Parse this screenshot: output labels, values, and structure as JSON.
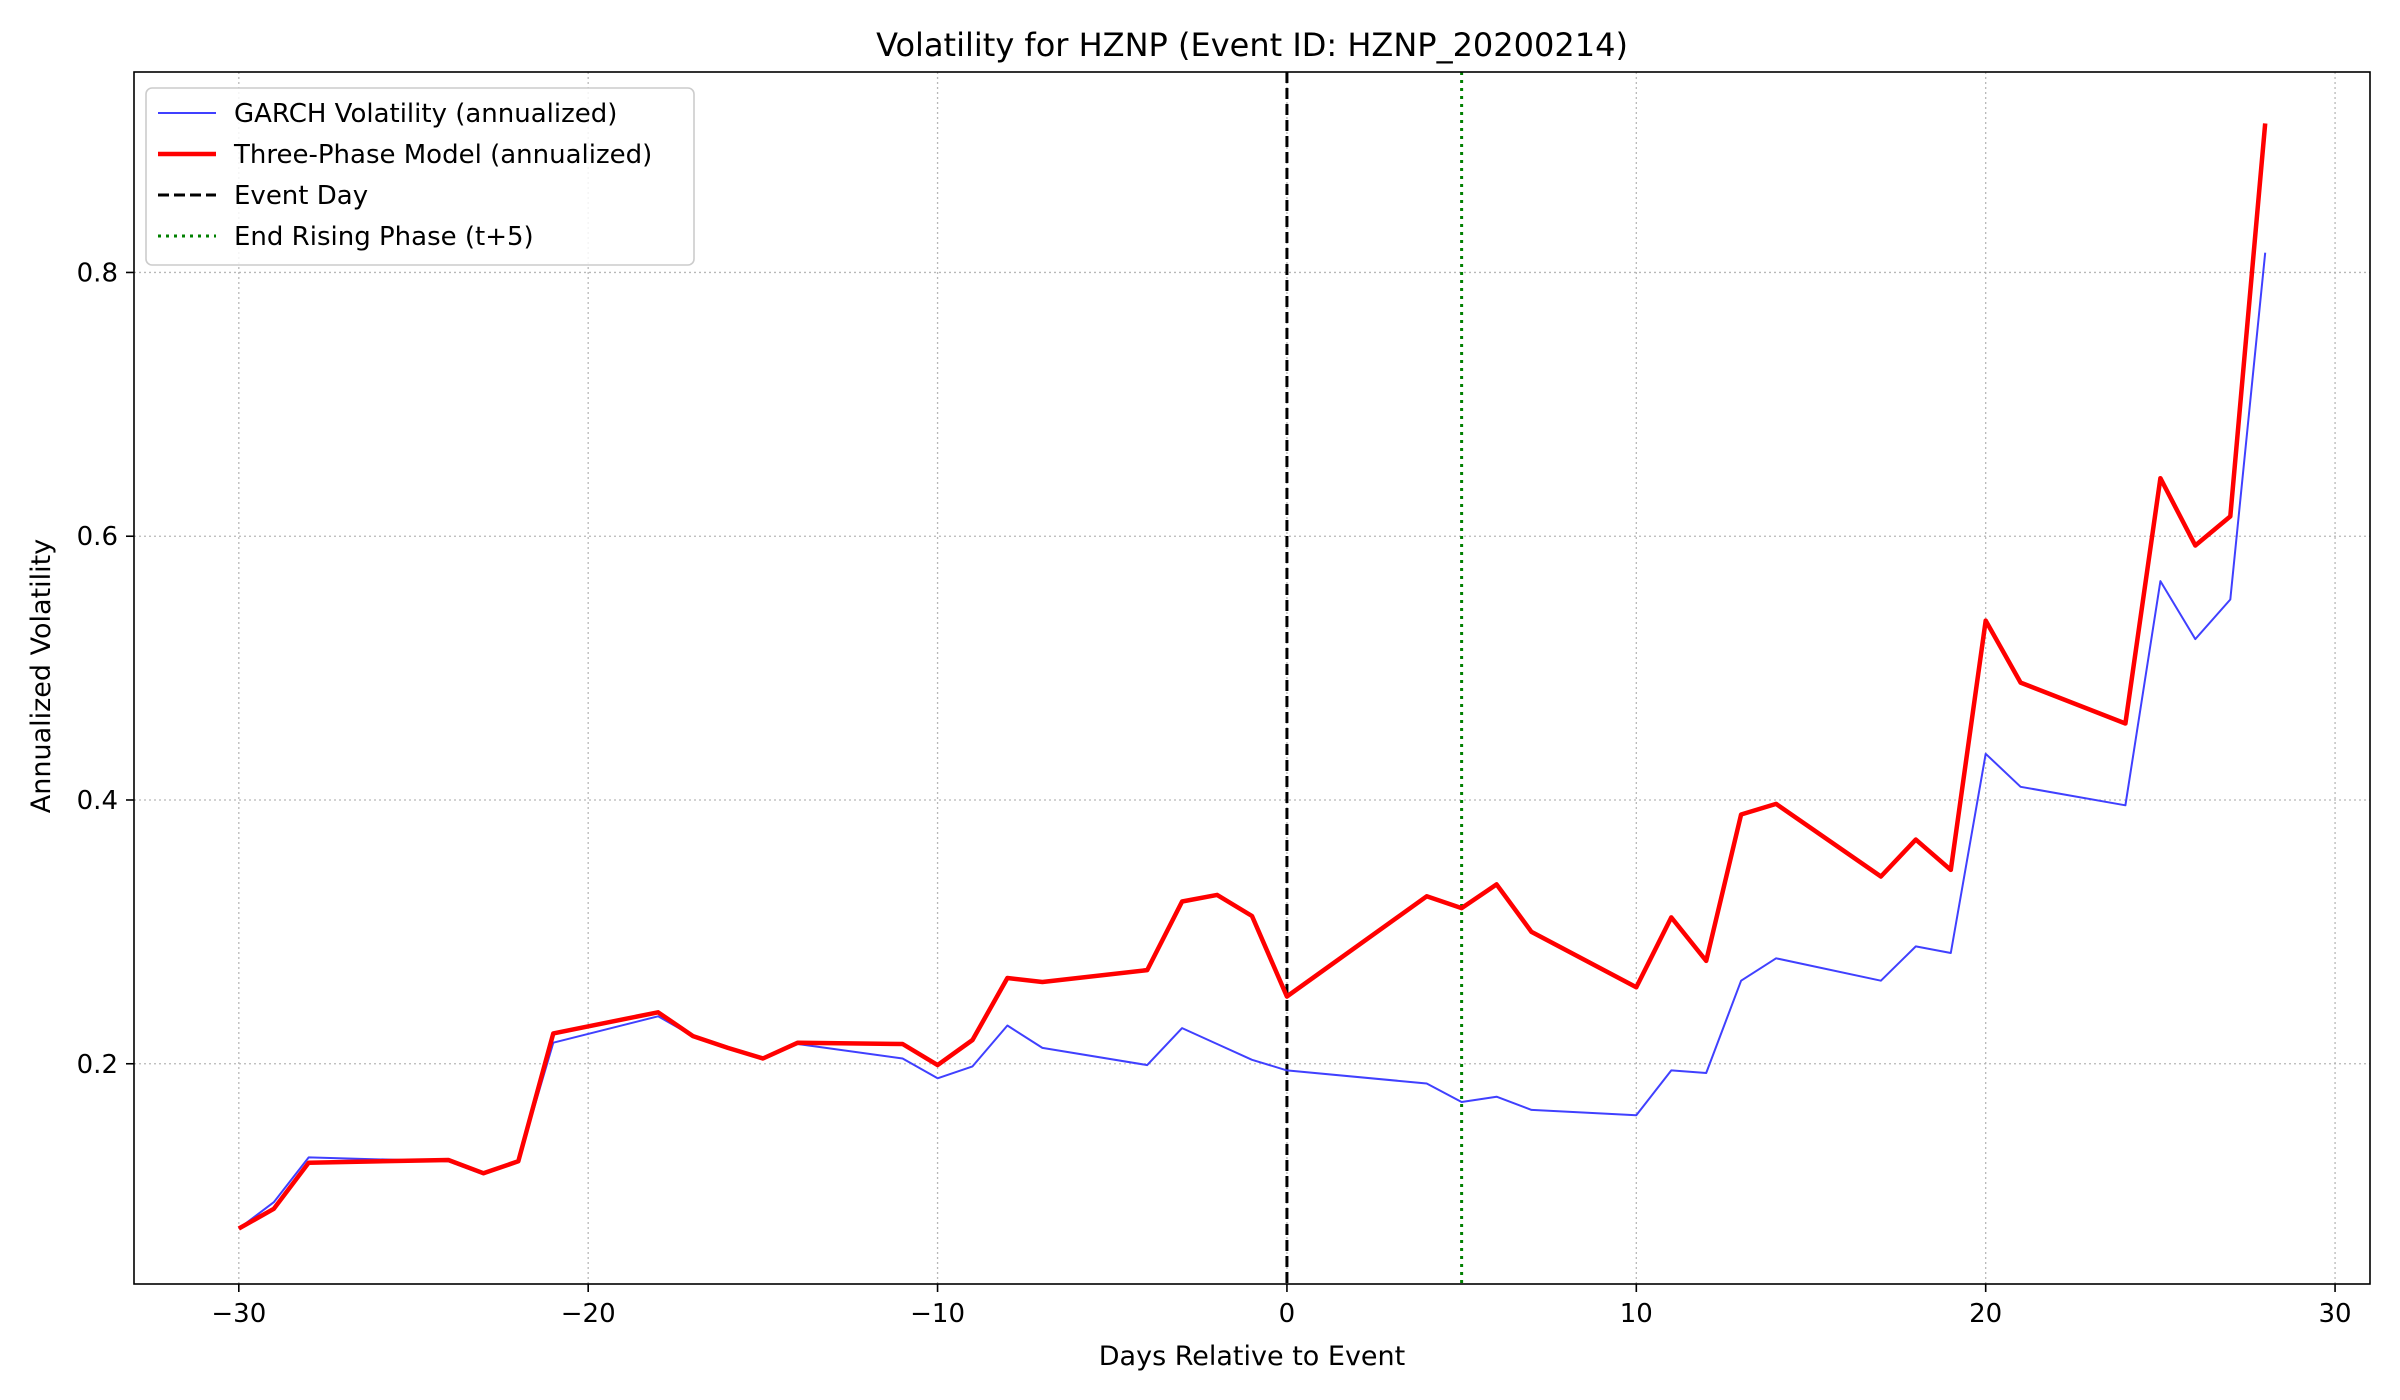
{
  "chart_data": {
    "type": "line",
    "title": "Volatility for HZNP (Event ID: HZNP_20200214)",
    "xlabel": "Days Relative to Event",
    "ylabel": "Annualized Volatility",
    "xlim": [
      -33,
      31
    ],
    "ylim": [
      0.033,
      0.952
    ],
    "xticks": [
      -30,
      -20,
      -10,
      0,
      10,
      20,
      30
    ],
    "xtick_labels": [
      "−30",
      "−20",
      "−10",
      "0",
      "10",
      "20",
      "30"
    ],
    "yticks": [
      0.2,
      0.4,
      0.6,
      0.8
    ],
    "ytick_labels": [
      "0.2",
      "0.4",
      "0.6",
      "0.8"
    ],
    "grid": true,
    "legend_position": "top-left",
    "series": [
      {
        "name": "GARCH Volatility (annualized)",
        "color": "#4040ff",
        "style": "solid",
        "x": [
          -30,
          -29,
          -28,
          -24,
          -23,
          -22,
          -21,
          -18,
          -17,
          -16,
          -15,
          -14,
          -11,
          -10,
          -9,
          -8,
          -7,
          -4,
          -3,
          -2,
          -1,
          0,
          4,
          5,
          6,
          7,
          10,
          11,
          12,
          13,
          14,
          17,
          18,
          19,
          20,
          21,
          24,
          25,
          26,
          27,
          28
        ],
        "y": [
          0.075,
          0.095,
          0.129,
          0.126,
          0.116,
          0.126,
          0.216,
          0.236,
          0.221,
          0.212,
          0.204,
          0.215,
          0.204,
          0.189,
          0.198,
          0.229,
          0.212,
          0.199,
          0.227,
          0.215,
          0.203,
          0.195,
          0.185,
          0.171,
          0.175,
          0.165,
          0.161,
          0.195,
          0.193,
          0.263,
          0.28,
          0.263,
          0.289,
          0.284,
          0.435,
          0.41,
          0.396,
          0.566,
          0.522,
          0.552,
          0.815
        ]
      },
      {
        "name": "Three-Phase Model (annualized)",
        "color": "#ff0000",
        "style": "solid",
        "x": [
          -30,
          -29,
          -28,
          -24,
          -23,
          -22,
          -21,
          -18,
          -17,
          -16,
          -15,
          -14,
          -11,
          -10,
          -9,
          -8,
          -7,
          -4,
          -3,
          -2,
          -1,
          0,
          4,
          5,
          6,
          7,
          10,
          11,
          12,
          13,
          14,
          17,
          18,
          19,
          20,
          21,
          24,
          25,
          26,
          27,
          28
        ],
        "y": [
          0.075,
          0.09,
          0.125,
          0.127,
          0.117,
          0.126,
          0.223,
          0.239,
          0.221,
          0.212,
          0.204,
          0.216,
          0.215,
          0.199,
          0.218,
          0.265,
          0.262,
          0.271,
          0.323,
          0.328,
          0.312,
          0.251,
          0.327,
          0.318,
          0.336,
          0.3,
          0.258,
          0.311,
          0.278,
          0.389,
          0.397,
          0.342,
          0.37,
          0.347,
          0.536,
          0.489,
          0.458,
          0.644,
          0.593,
          0.615,
          0.913
        ]
      }
    ],
    "vlines": [
      {
        "name": "Event Day",
        "x": 0,
        "color": "#000000",
        "style": "dashed"
      },
      {
        "name": "End Rising Phase (t+5)",
        "x": 5,
        "color": "#008000",
        "style": "dotted"
      }
    ]
  }
}
